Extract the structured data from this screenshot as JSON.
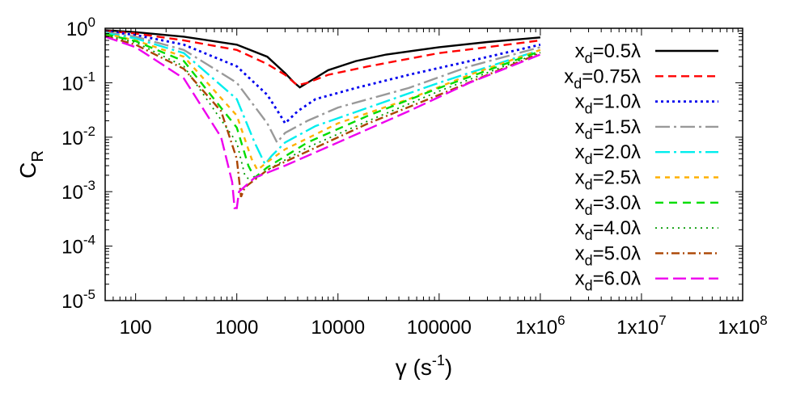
{
  "chart_data": {
    "type": "line",
    "xscale": "log",
    "yscale": "log",
    "xlim": [
      50,
      100000000
    ],
    "ylim": [
      1e-05,
      1
    ],
    "xlabel": {
      "main": "γ (s",
      "sup": "-1",
      "tail": ")"
    },
    "ylabel": {
      "main": "C",
      "sub": "R"
    },
    "x_ticks": [
      {
        "value": 100,
        "main": "100",
        "sup": ""
      },
      {
        "value": 1000,
        "main": "1000",
        "sup": ""
      },
      {
        "value": 10000,
        "main": "10000",
        "sup": ""
      },
      {
        "value": 100000,
        "main": "100000",
        "sup": ""
      },
      {
        "value": 1000000,
        "main": "1x10",
        "sup": "6"
      },
      {
        "value": 10000000,
        "main": "1x10",
        "sup": "7"
      },
      {
        "value": 100000000,
        "main": "1x10",
        "sup": "8"
      }
    ],
    "y_ticks": [
      {
        "value": 1,
        "main": "10",
        "sup": "0"
      },
      {
        "value": 0.1,
        "main": "10",
        "sup": "-1"
      },
      {
        "value": 0.01,
        "main": "10",
        "sup": "-2"
      },
      {
        "value": 0.001,
        "main": "10",
        "sup": "-3"
      },
      {
        "value": 0.0001,
        "main": "10",
        "sup": "-4"
      },
      {
        "value": 1e-05,
        "main": "10",
        "sup": "-5"
      }
    ],
    "grid": false,
    "legend_position": "top-right",
    "series": [
      {
        "name": "x_d=0.5λ",
        "label_main": "x",
        "label_sub": "d",
        "label_tail": "=0.5λ",
        "color": "#000000",
        "dash": "",
        "width": 2.4,
        "points": [
          [
            50,
            0.92
          ],
          [
            100,
            0.85
          ],
          [
            300,
            0.7
          ],
          [
            1000,
            0.5
          ],
          [
            2000,
            0.3
          ],
          [
            3000,
            0.15
          ],
          [
            3700,
            0.1
          ],
          [
            4200,
            0.082
          ],
          [
            5000,
            0.1
          ],
          [
            8000,
            0.17
          ],
          [
            15000,
            0.25
          ],
          [
            30000,
            0.33
          ],
          [
            100000,
            0.45
          ],
          [
            300000,
            0.56
          ],
          [
            1000000,
            0.68
          ]
        ]
      },
      {
        "name": "x_d=0.75λ",
        "label_main": "x",
        "label_sub": "d",
        "label_tail": "=0.75λ",
        "color": "#ff0000",
        "dash": "10,6",
        "width": 2.4,
        "points": [
          [
            50,
            0.9
          ],
          [
            100,
            0.8
          ],
          [
            300,
            0.6
          ],
          [
            1000,
            0.4
          ],
          [
            2000,
            0.22
          ],
          [
            3000,
            0.14
          ],
          [
            3700,
            0.1
          ],
          [
            4000,
            0.09
          ],
          [
            5000,
            0.1
          ],
          [
            8000,
            0.14
          ],
          [
            20000,
            0.2
          ],
          [
            100000,
            0.35
          ],
          [
            300000,
            0.45
          ],
          [
            1000000,
            0.6
          ]
        ]
      },
      {
        "name": "x_d=1.0λ",
        "label_main": "x",
        "label_sub": "d",
        "label_tail": "=1.0λ",
        "color": "#0000ee",
        "dash": "3,4",
        "width": 2.8,
        "points": [
          [
            50,
            0.88
          ],
          [
            100,
            0.75
          ],
          [
            300,
            0.5
          ],
          [
            1000,
            0.2
          ],
          [
            2000,
            0.06
          ],
          [
            2700,
            0.025
          ],
          [
            3000,
            0.018
          ],
          [
            4000,
            0.03
          ],
          [
            6000,
            0.05
          ],
          [
            15000,
            0.08
          ],
          [
            50000,
            0.14
          ],
          [
            200000,
            0.25
          ],
          [
            1000000,
            0.5
          ]
        ]
      },
      {
        "name": "x_d=1.5λ",
        "label_main": "x",
        "label_sub": "d",
        "label_tail": "=1.5λ",
        "color": "#999999",
        "dash": "18,5,3,5",
        "width": 2.4,
        "points": [
          [
            50,
            0.85
          ],
          [
            100,
            0.7
          ],
          [
            300,
            0.4
          ],
          [
            1000,
            0.1
          ],
          [
            2000,
            0.018
          ],
          [
            2500,
            0.008
          ],
          [
            3000,
            0.012
          ],
          [
            5000,
            0.02
          ],
          [
            10000,
            0.035
          ],
          [
            50000,
            0.08
          ],
          [
            200000,
            0.2
          ],
          [
            1000000,
            0.45
          ]
        ]
      },
      {
        "name": "x_d=2.0λ",
        "label_main": "x",
        "label_sub": "d",
        "label_tail": "=2.0λ",
        "color": "#00eeee",
        "dash": "18,5,3,5",
        "width": 2.4,
        "points": [
          [
            50,
            0.82
          ],
          [
            100,
            0.65
          ],
          [
            300,
            0.35
          ],
          [
            1000,
            0.05
          ],
          [
            1500,
            0.008
          ],
          [
            1900,
            0.0032
          ],
          [
            2200,
            0.0045
          ],
          [
            3000,
            0.008
          ],
          [
            6000,
            0.016
          ],
          [
            20000,
            0.035
          ],
          [
            100000,
            0.1
          ],
          [
            1000000,
            0.4
          ]
        ]
      },
      {
        "name": "x_d=2.5λ",
        "label_main": "x",
        "label_sub": "d",
        "label_tail": "=2.5λ",
        "color": "#ffb000",
        "dash": "6,6",
        "width": 2.4,
        "points": [
          [
            50,
            0.8
          ],
          [
            100,
            0.6
          ],
          [
            300,
            0.3
          ],
          [
            1000,
            0.025
          ],
          [
            1400,
            0.004
          ],
          [
            1600,
            0.0025
          ],
          [
            2000,
            0.0035
          ],
          [
            3000,
            0.006
          ],
          [
            10000,
            0.018
          ],
          [
            50000,
            0.05
          ],
          [
            200000,
            0.14
          ],
          [
            1000000,
            0.4
          ]
        ]
      },
      {
        "name": "x_d=3.0λ",
        "label_main": "x",
        "label_sub": "d",
        "label_tail": "=3.0λ",
        "color": "#00dd00",
        "dash": "10,7",
        "width": 2.4,
        "points": [
          [
            50,
            0.78
          ],
          [
            100,
            0.58
          ],
          [
            300,
            0.25
          ],
          [
            1000,
            0.015
          ],
          [
            1300,
            0.003
          ],
          [
            1500,
            0.0018
          ],
          [
            2000,
            0.0028
          ],
          [
            5000,
            0.008
          ],
          [
            20000,
            0.025
          ],
          [
            100000,
            0.08
          ],
          [
            1000000,
            0.38
          ]
        ]
      },
      {
        "name": "x_d=4.0λ",
        "label_main": "x",
        "label_sub": "d",
        "label_tail": "=4.0λ",
        "color": "#009900",
        "dash": "2,5",
        "width": 1.8,
        "points": [
          [
            50,
            0.75
          ],
          [
            100,
            0.55
          ],
          [
            300,
            0.2
          ],
          [
            1000,
            0.008
          ],
          [
            1200,
            0.002
          ],
          [
            1400,
            0.0015
          ],
          [
            2000,
            0.0025
          ],
          [
            5000,
            0.0065
          ],
          [
            20000,
            0.02
          ],
          [
            100000,
            0.07
          ],
          [
            1000000,
            0.36
          ]
        ]
      },
      {
        "name": "x_d=5.0λ",
        "label_main": "x",
        "label_sub": "d",
        "label_tail": "=5.0λ",
        "color": "#aa4400",
        "dash": "10,4,2,4",
        "width": 2.4,
        "points": [
          [
            50,
            0.72
          ],
          [
            100,
            0.5
          ],
          [
            300,
            0.18
          ],
          [
            700,
            0.03
          ],
          [
            1000,
            0.004
          ],
          [
            1100,
            0.0008
          ],
          [
            1200,
            0.0012
          ],
          [
            2000,
            0.0025
          ],
          [
            5000,
            0.0055
          ],
          [
            20000,
            0.018
          ],
          [
            100000,
            0.06
          ],
          [
            1000000,
            0.35
          ]
        ]
      },
      {
        "name": "x_d=6.0λ",
        "label_main": "x",
        "label_sub": "d",
        "label_tail": "=6.0λ",
        "color": "#ee00ee",
        "dash": "16,6",
        "width": 2.4,
        "points": [
          [
            50,
            0.7
          ],
          [
            100,
            0.45
          ],
          [
            300,
            0.12
          ],
          [
            700,
            0.01
          ],
          [
            900,
            0.0015
          ],
          [
            950,
            0.0005
          ],
          [
            1000,
            0.0005
          ],
          [
            1050,
            0.001
          ],
          [
            1500,
            0.0018
          ],
          [
            3000,
            0.003
          ],
          [
            10000,
            0.008
          ],
          [
            50000,
            0.03
          ],
          [
            200000,
            0.1
          ],
          [
            1000000,
            0.33
          ]
        ]
      }
    ]
  }
}
